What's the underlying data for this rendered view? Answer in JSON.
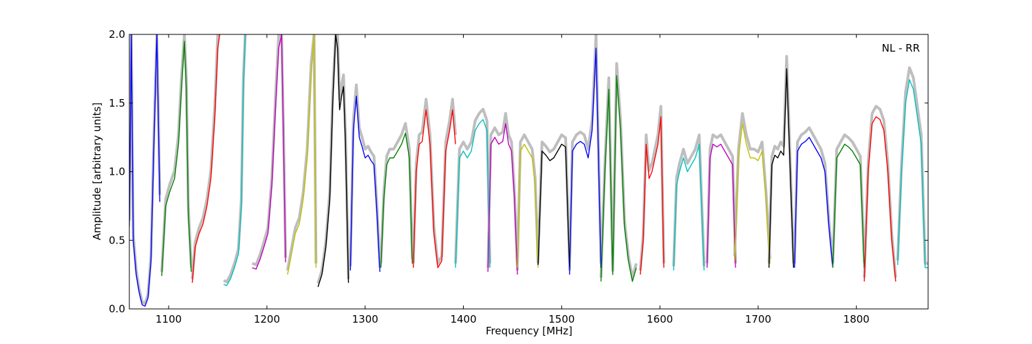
{
  "chart_data": {
    "type": "line",
    "title": "",
    "annotation": "NL - RR",
    "xlabel": "Frequency [MHz]",
    "ylabel": "Amplitude [arbitrary units]",
    "xlim": [
      1060,
      1873
    ],
    "ylim": [
      0,
      2.0
    ],
    "xticks": [
      1100,
      1200,
      1300,
      1400,
      1500,
      1600,
      1700,
      1800
    ],
    "yticks": [
      0.0,
      0.5,
      1.0,
      1.5,
      2.0
    ],
    "ytick_labels": [
      "0.0",
      "0.5",
      "1.0",
      "1.5",
      "2.0"
    ],
    "grid": false,
    "legend": "none",
    "background_color": "#bebebe",
    "band_colors": [
      "#0000ff",
      "#008000",
      "#ff0000",
      "#00bfbf",
      "#bf00bf",
      "#bfbf00",
      "#000000"
    ],
    "bands": [
      {
        "x": [
          1060,
          1062,
          1064,
          1067,
          1070,
          1073,
          1076,
          1079,
          1082,
          1085,
          1088,
          1091
        ],
        "y": [
          0.6,
          2.0,
          0.5,
          0.25,
          0.12,
          0.03,
          0.02,
          0.08,
          0.35,
          1.2,
          2.0,
          0.78
        ]
      },
      {
        "x": [
          1093,
          1097,
          1101,
          1106,
          1110,
          1113,
          1116,
          1118,
          1120,
          1123
        ],
        "y": [
          0.24,
          0.75,
          0.85,
          0.95,
          1.2,
          1.6,
          1.95,
          1.6,
          0.7,
          0.27
        ]
      },
      {
        "x": [
          1124,
          1127,
          1131,
          1135,
          1139,
          1143,
          1147,
          1150,
          1152
        ],
        "y": [
          0.19,
          0.45,
          0.55,
          0.62,
          0.75,
          0.95,
          1.4,
          1.9,
          2.0
        ]
      },
      {
        "x": [
          1156,
          1159,
          1163,
          1167,
          1171,
          1174,
          1176,
          1178
        ],
        "y": [
          0.18,
          0.17,
          0.22,
          0.3,
          0.4,
          0.75,
          1.6,
          2.0
        ]
      },
      {
        "x": [
          1185,
          1189,
          1193,
          1197,
          1201,
          1205,
          1209,
          1212,
          1215,
          1217,
          1219
        ],
        "y": [
          0.3,
          0.29,
          0.36,
          0.45,
          0.55,
          0.9,
          1.5,
          1.9,
          2.0,
          1.2,
          0.34
        ]
      },
      {
        "x": [
          1221,
          1225,
          1229,
          1233,
          1237,
          1241,
          1245,
          1248,
          1250
        ],
        "y": [
          0.25,
          0.4,
          0.55,
          0.62,
          0.8,
          1.1,
          1.7,
          2.0,
          0.3
        ]
      },
      {
        "x": [
          1252,
          1256,
          1260,
          1264,
          1267,
          1270,
          1272,
          1274,
          1276,
          1278,
          1280,
          1283
        ],
        "y": [
          0.16,
          0.25,
          0.45,
          0.8,
          1.5,
          2.0,
          1.9,
          1.45,
          1.55,
          1.62,
          1.2,
          0.19
        ]
      },
      {
        "x": [
          1285,
          1288,
          1291,
          1294,
          1297,
          1300,
          1303,
          1306,
          1309,
          1312,
          1315
        ],
        "y": [
          0.28,
          1.3,
          1.55,
          1.25,
          1.18,
          1.1,
          1.12,
          1.08,
          1.05,
          0.7,
          0.27
        ]
      },
      {
        "x": [
          1316,
          1319,
          1322,
          1325,
          1329,
          1333,
          1337,
          1341,
          1345,
          1348
        ],
        "y": [
          0.3,
          0.8,
          1.05,
          1.1,
          1.1,
          1.15,
          1.2,
          1.28,
          1.1,
          0.33
        ]
      },
      {
        "x": [
          1349,
          1352,
          1355,
          1358,
          1362,
          1366,
          1370,
          1374,
          1378,
          1382,
          1386,
          1389,
          1392
        ],
        "y": [
          0.3,
          1.0,
          1.2,
          1.22,
          1.45,
          1.2,
          0.55,
          0.3,
          0.35,
          1.15,
          1.3,
          1.45,
          1.2
        ]
      },
      {
        "x": [
          1392,
          1396,
          1400,
          1404,
          1408,
          1412,
          1416,
          1420,
          1424,
          1427
        ],
        "y": [
          0.3,
          1.1,
          1.15,
          1.1,
          1.15,
          1.3,
          1.35,
          1.38,
          1.3,
          0.3
        ]
      },
      {
        "x": [
          1425,
          1428,
          1432,
          1436,
          1440,
          1443,
          1446,
          1449,
          1452,
          1455
        ],
        "y": [
          0.27,
          1.2,
          1.25,
          1.2,
          1.22,
          1.35,
          1.2,
          1.15,
          0.8,
          0.25
        ]
      },
      {
        "x": [
          1455,
          1458,
          1462,
          1466,
          1470,
          1473,
          1476
        ],
        "y": [
          0.3,
          1.15,
          1.2,
          1.15,
          1.1,
          0.9,
          0.3
        ]
      },
      {
        "x": [
          1476,
          1480,
          1484,
          1488,
          1492,
          1496,
          1500,
          1504,
          1508
        ],
        "y": [
          0.32,
          1.15,
          1.12,
          1.08,
          1.1,
          1.15,
          1.2,
          1.18,
          0.3
        ]
      },
      {
        "x": [
          1508,
          1511,
          1515,
          1519,
          1523,
          1527,
          1531,
          1535,
          1540
        ],
        "y": [
          0.25,
          1.15,
          1.2,
          1.22,
          1.2,
          1.1,
          1.3,
          1.9,
          0.3
        ]
      },
      {
        "x": [
          1540,
          1544,
          1548,
          1552,
          1556,
          1560,
          1564,
          1568,
          1572,
          1576
        ],
        "y": [
          0.2,
          1.0,
          1.6,
          0.25,
          1.7,
          1.3,
          0.6,
          0.35,
          0.2,
          0.3
        ]
      },
      {
        "x": [
          1580,
          1583,
          1586,
          1589,
          1592,
          1595,
          1598,
          1601,
          1604
        ],
        "y": [
          0.25,
          0.5,
          1.2,
          0.95,
          1.0,
          1.1,
          1.2,
          1.4,
          0.3
        ]
      },
      {
        "x": [
          1614,
          1617,
          1620,
          1624,
          1628,
          1632,
          1636,
          1640,
          1645
        ],
        "y": [
          0.28,
          0.9,
          1.0,
          1.1,
          1.0,
          1.05,
          1.1,
          1.2,
          0.28
        ]
      },
      {
        "x": [
          1648,
          1651,
          1654,
          1658,
          1662,
          1666,
          1670,
          1674,
          1677
        ],
        "y": [
          0.3,
          1.1,
          1.2,
          1.18,
          1.2,
          1.15,
          1.1,
          1.05,
          0.3
        ]
      },
      {
        "x": [
          1676,
          1680,
          1684,
          1688,
          1692,
          1696,
          1700,
          1704,
          1708,
          1712
        ],
        "y": [
          0.35,
          1.1,
          1.35,
          1.2,
          1.1,
          1.1,
          1.08,
          1.15,
          0.8,
          0.33
        ]
      },
      {
        "x": [
          1711,
          1714,
          1717,
          1720,
          1723,
          1726,
          1729,
          1732,
          1736
        ],
        "y": [
          0.3,
          1.05,
          1.12,
          1.1,
          1.15,
          1.12,
          1.75,
          1.15,
          0.3
        ]
      },
      {
        "x": [
          1737,
          1740,
          1744,
          1748,
          1752,
          1756,
          1760,
          1764,
          1768,
          1772,
          1776
        ],
        "y": [
          0.3,
          1.15,
          1.2,
          1.22,
          1.25,
          1.2,
          1.15,
          1.1,
          1.0,
          0.6,
          0.3
        ]
      },
      {
        "x": [
          1776,
          1780,
          1784,
          1788,
          1792,
          1796,
          1800,
          1804,
          1808
        ],
        "y": [
          0.3,
          1.1,
          1.15,
          1.2,
          1.18,
          1.15,
          1.1,
          1.05,
          0.3
        ]
      },
      {
        "x": [
          1808,
          1812,
          1816,
          1820,
          1824,
          1828,
          1832,
          1836,
          1840
        ],
        "y": [
          0.2,
          1.0,
          1.35,
          1.4,
          1.38,
          1.3,
          1.0,
          0.5,
          0.2
        ]
      },
      {
        "x": [
          1842,
          1846,
          1850,
          1854,
          1858,
          1862,
          1866,
          1870,
          1873
        ],
        "y": [
          0.32,
          1.0,
          1.5,
          1.67,
          1.6,
          1.4,
          1.2,
          0.3,
          0.3
        ]
      }
    ]
  }
}
